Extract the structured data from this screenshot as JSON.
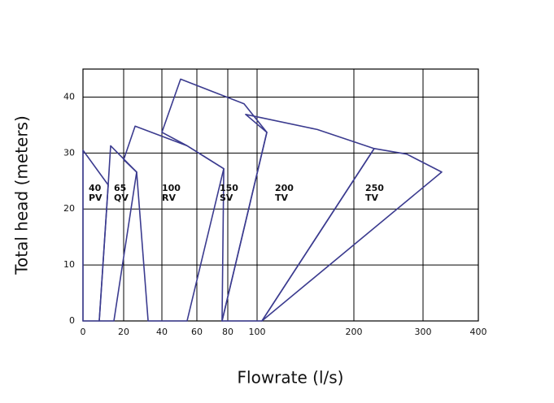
{
  "chart_data": {
    "type": "area",
    "x_label": "Flowrate (l/s)",
    "y_label": "Total head  (meters)",
    "xlim": [
      0,
      400
    ],
    "xticks": [
      0,
      20,
      40,
      60,
      80,
      100,
      200,
      300,
      400
    ],
    "ylim": [
      0,
      45
    ],
    "yticks": [
      0,
      10,
      20,
      30,
      40
    ],
    "grid": true,
    "series": [
      {
        "labels": [
          "40",
          "PV"
        ],
        "color": "#3b3b8f",
        "x": [
          0,
          12.4,
          8,
          0
        ],
        "values": [
          30.5,
          24.3,
          0,
          0
        ]
      },
      {
        "labels": [
          "65",
          "QV"
        ],
        "color": "#3b3b8f",
        "x": [
          12.4,
          13.6,
          26.8,
          15.2,
          8
        ],
        "values": [
          24.3,
          31.3,
          26.6,
          0,
          0
        ]
      },
      {
        "labels": [
          "100",
          "RV"
        ],
        "color": "#3b3b8f",
        "x": [
          26,
          54.4,
          77.4,
          54.4,
          32.8,
          26.8,
          20
        ],
        "values": [
          34.8,
          31.3,
          27.2,
          0,
          0,
          26.6,
          28.8
        ]
      },
      {
        "labels": [
          "150",
          "SV"
        ],
        "color": "#3b3b8f",
        "x": [
          50.7,
          91.1,
          110.1,
          76.3,
          77.4,
          54.4,
          40
        ],
        "values": [
          43.2,
          38.8,
          33.7,
          0,
          27.2,
          31.3,
          33.7
        ]
      },
      {
        "labels": [
          "200",
          "TV"
        ],
        "color": "#3b3b8f",
        "x": [
          92.2,
          162.2,
          229.4,
          105,
          76.3,
          110.1
        ],
        "values": [
          36.9,
          34.2,
          30.8,
          0,
          0,
          33.7
        ]
      },
      {
        "labels": [
          "250",
          "TV"
        ],
        "color": "#3b3b8f",
        "x": [
          229.4,
          276.5,
          333.8,
          105
        ],
        "values": [
          30.8,
          29.8,
          26.6,
          0
        ]
      }
    ]
  }
}
